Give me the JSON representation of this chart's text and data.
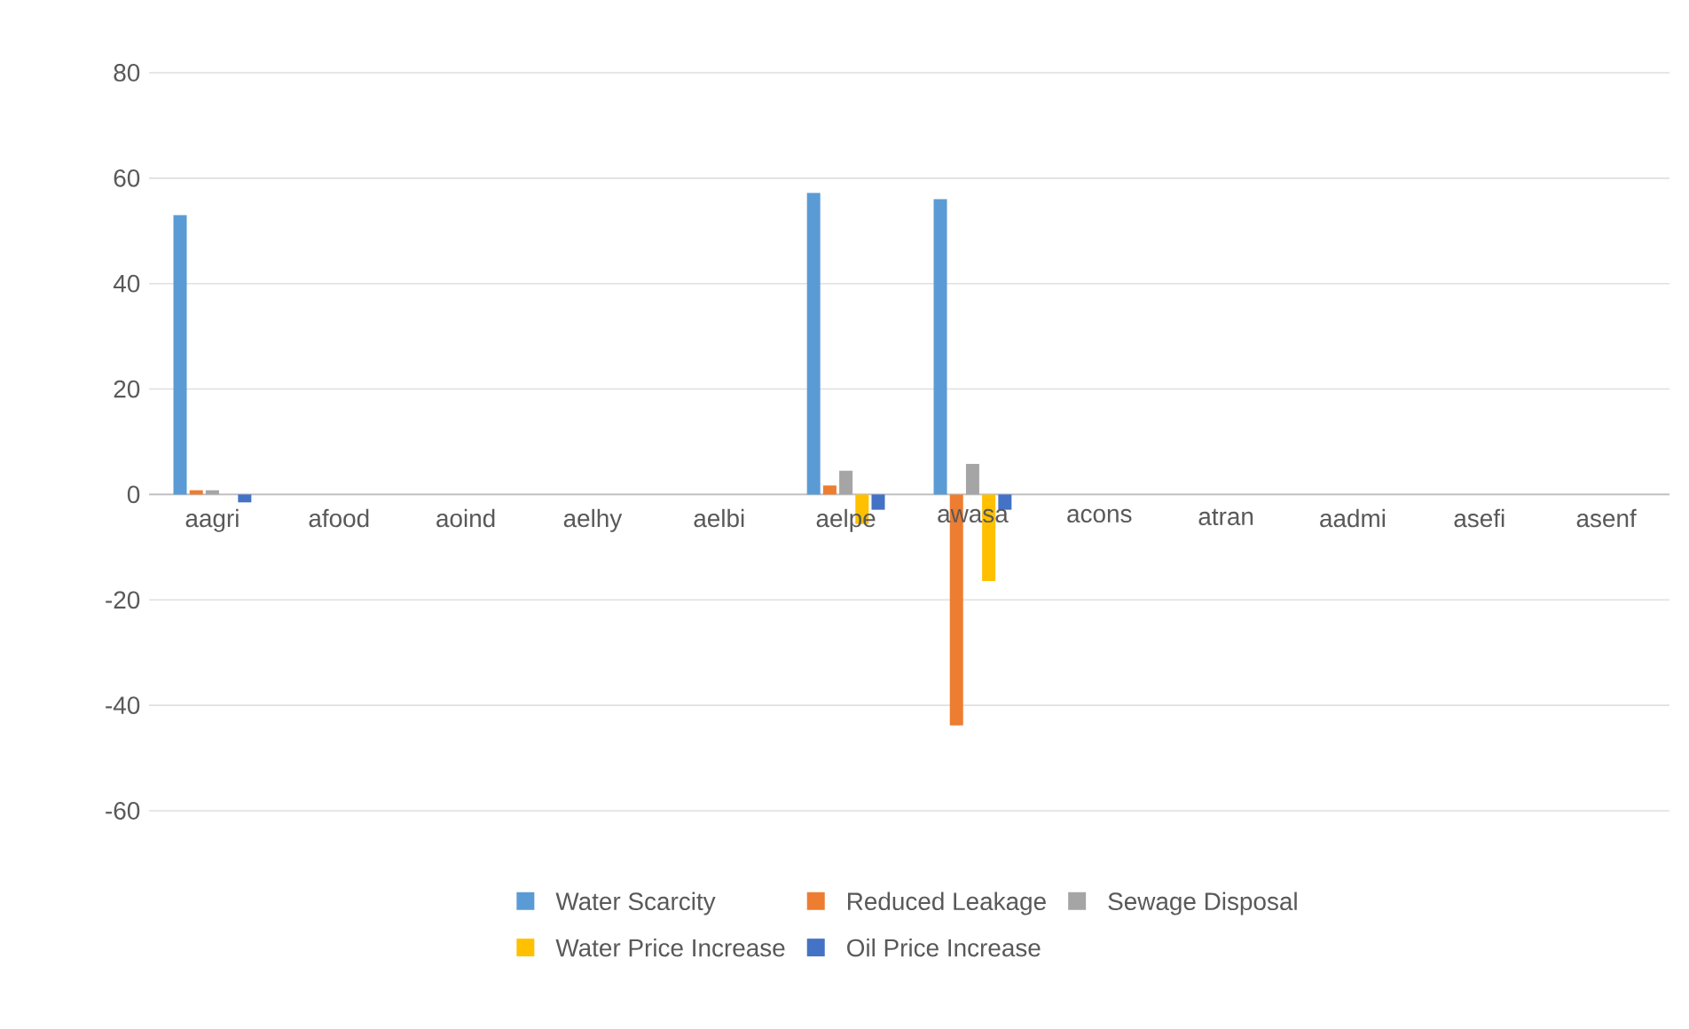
{
  "chart_data": {
    "type": "bar",
    "categories": [
      "aagri",
      "afood",
      "aoind",
      "aelhy",
      "aelbi",
      "aelpe",
      "awasa",
      "acons",
      "atran",
      "aadmi",
      "asefi",
      "asenf"
    ],
    "series": [
      {
        "name": "Water Scarcity",
        "color": "#5b9bd5",
        "values": [
          53,
          0,
          0,
          0,
          0,
          57.2,
          56,
          0,
          0,
          0,
          0,
          0
        ]
      },
      {
        "name": "Reduced Leakage",
        "color": "#ed7d31",
        "values": [
          0.8,
          0,
          0,
          0,
          0,
          1.7,
          -43.8,
          0,
          0,
          0,
          0,
          0
        ]
      },
      {
        "name": "Sewage Disposal",
        "color": "#a5a5a5",
        "values": [
          0.8,
          0,
          0,
          0,
          0,
          4.5,
          5.8,
          0,
          0,
          0,
          0,
          0
        ]
      },
      {
        "name": "Water Price Increase",
        "color": "#ffc000",
        "values": [
          0,
          0,
          0,
          0,
          0,
          -5.6,
          -16.4,
          0,
          0,
          0,
          0,
          0
        ]
      },
      {
        "name": "Oil Price Increase",
        "color": "#4472c4",
        "values": [
          -1.5,
          0,
          0,
          0,
          0,
          -2.9,
          -2.9,
          0,
          0,
          0,
          0,
          0
        ]
      }
    ],
    "ylim": [
      -60,
      80
    ],
    "yticks": [
      -60,
      -40,
      -20,
      0,
      20,
      40,
      60,
      80
    ],
    "grid": "y",
    "legend": "bottom"
  }
}
